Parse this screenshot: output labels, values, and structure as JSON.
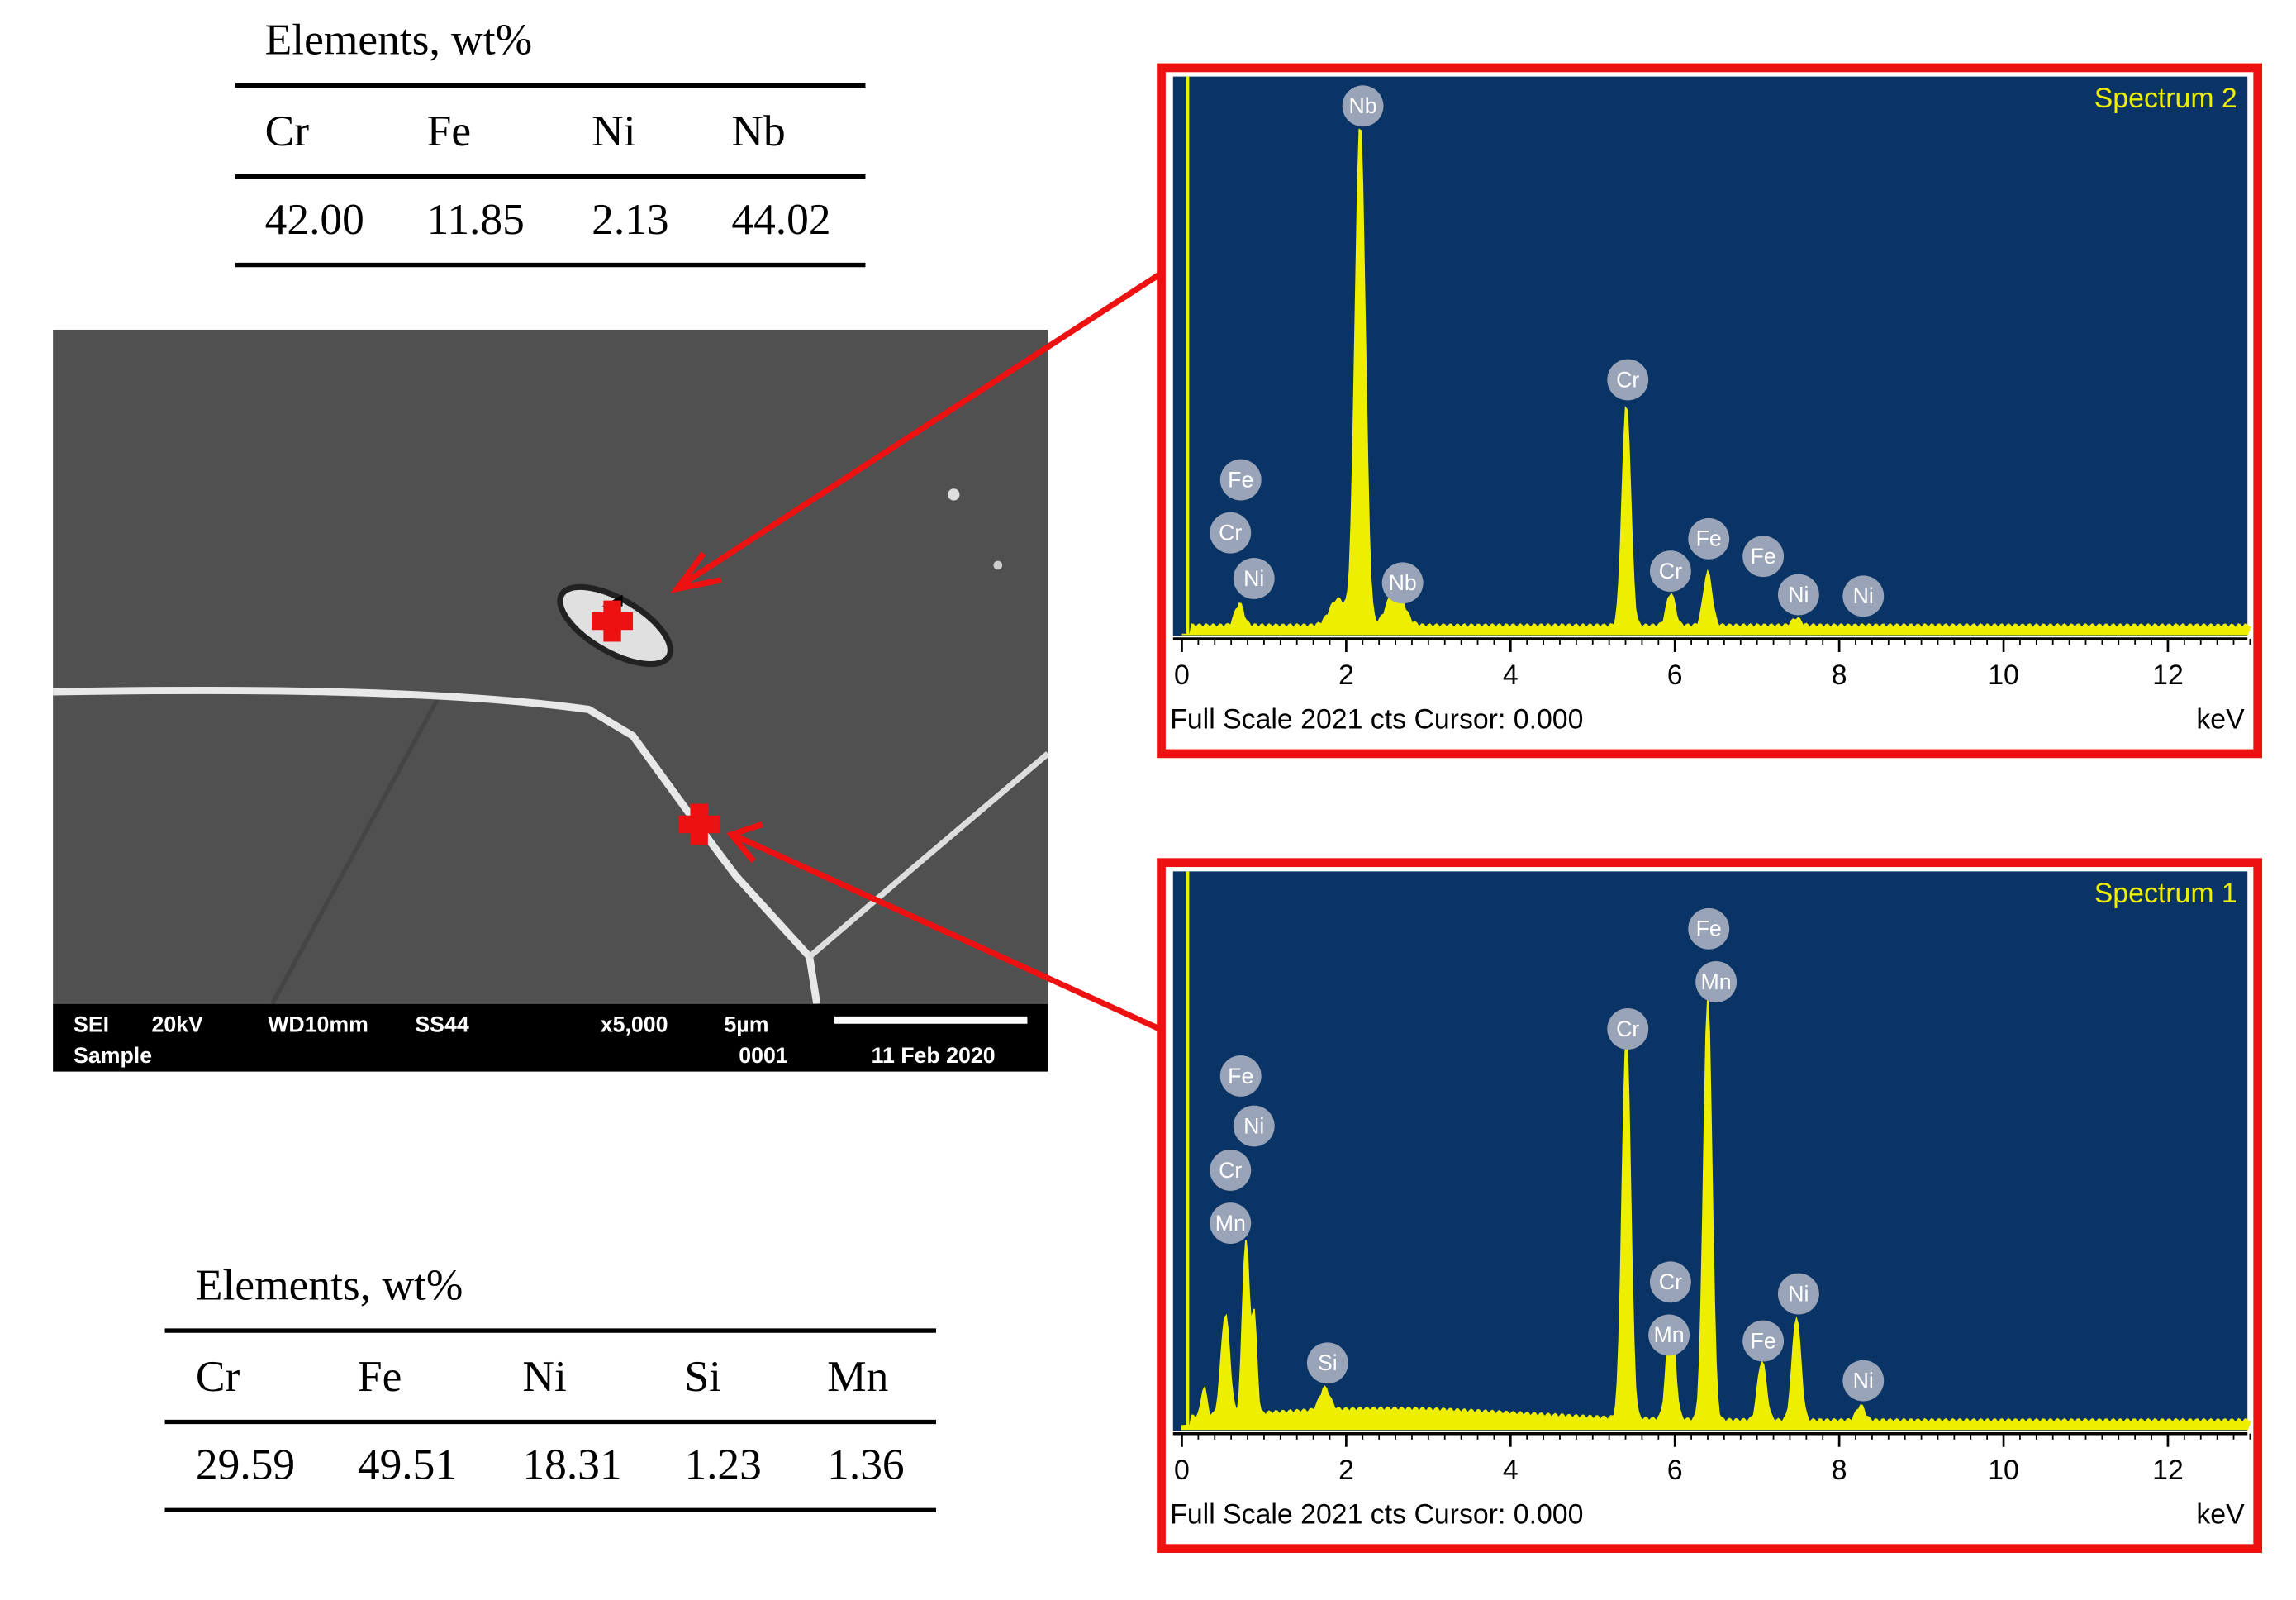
{
  "table_top": {
    "title": "Elements, wt%",
    "header": [
      "Cr",
      "Fe",
      "Ni",
      "Nb"
    ],
    "row": [
      "42.00",
      "11.85",
      "2.13",
      "44.02"
    ]
  },
  "table_bottom": {
    "title": "Elements, wt%",
    "header": [
      "Cr",
      "Fe",
      "Ni",
      "Si",
      "Mn"
    ],
    "row": [
      "29.59",
      "49.51",
      "18.31",
      "1.23",
      "1.36"
    ]
  },
  "sem": {
    "line1": [
      "SEI",
      "20kV",
      "WD10mm",
      "SS44",
      "x5,000",
      "5µm"
    ],
    "line2": [
      "Sample",
      "0001",
      "11 Feb 2020"
    ]
  },
  "spectra": [
    {
      "title": "Spectrum 2",
      "peak_labels": [
        "Nb",
        "Cr",
        "Fe",
        "Cr",
        "Ni",
        "Nb",
        "Cr",
        "Fe",
        "Fe",
        "Ni",
        "Ni"
      ],
      "xticks": [
        0,
        2,
        4,
        6,
        8,
        10,
        12
      ],
      "footer": "Full Scale 2021 cts Cursor: 0.000",
      "unit": "keV"
    },
    {
      "title": "Spectrum 1",
      "peak_labels": [
        "Fe",
        "Mn",
        "Cr",
        "Fe",
        "Ni",
        "Cr",
        "Mn",
        "Si",
        "Cr",
        "Mn",
        "Fe",
        "Ni",
        "Ni"
      ],
      "xticks": [
        0,
        2,
        4,
        6,
        8,
        10,
        12
      ],
      "footer": "Full Scale 2021 cts Cursor: 0.000",
      "unit": "keV"
    }
  ]
}
